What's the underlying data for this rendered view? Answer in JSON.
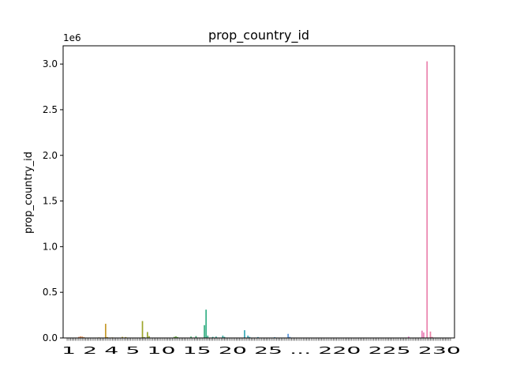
{
  "chart_data": {
    "type": "bar",
    "title": "prop_country_id",
    "xlabel": "",
    "ylabel": "prop_country_id",
    "y_multiplier_label": "1e6",
    "ylim": [
      0,
      3.2
    ],
    "yticks": [
      0.0,
      0.5,
      1.0,
      1.5,
      2.0,
      2.5,
      3.0
    ],
    "ytick_labels": [
      "0.0",
      "0.5",
      "1.0",
      "1.5",
      "2.0",
      "2.5",
      "3.0"
    ],
    "y_unit": "millions",
    "legend": "none",
    "grid": false,
    "xtick_labels_visible": "1  2  4  5  10  15  20  25  ...  220  225  230",
    "bars": [
      {
        "i": 1,
        "value": 0.004,
        "color": "#e8867a"
      },
      {
        "i": 8,
        "value": 0.012,
        "color": "#e08a60"
      },
      {
        "i": 9,
        "value": 0.018,
        "color": "#e08a55"
      },
      {
        "i": 10,
        "value": 0.015,
        "color": "#dd8b50"
      },
      {
        "i": 11,
        "value": 0.01,
        "color": "#db8d48"
      },
      {
        "i": 20,
        "value": 0.006,
        "color": "#c9932f"
      },
      {
        "i": 24,
        "value": 0.155,
        "color": "#c69a2a"
      },
      {
        "i": 25,
        "value": 0.01,
        "color": "#c49c28"
      },
      {
        "i": 28,
        "value": 0.006,
        "color": "#be9e26"
      },
      {
        "i": 34,
        "value": 0.012,
        "color": "#b6a226"
      },
      {
        "i": 36,
        "value": 0.01,
        "color": "#b3a326"
      },
      {
        "i": 46,
        "value": 0.185,
        "color": "#9ea52a"
      },
      {
        "i": 47,
        "value": 0.01,
        "color": "#9ca62b"
      },
      {
        "i": 49,
        "value": 0.065,
        "color": "#98a72c"
      },
      {
        "i": 50,
        "value": 0.02,
        "color": "#96a82d"
      },
      {
        "i": 65,
        "value": 0.012,
        "color": "#6aaa3a"
      },
      {
        "i": 66,
        "value": 0.018,
        "color": "#62aa3e"
      },
      {
        "i": 67,
        "value": 0.01,
        "color": "#5aaa43"
      },
      {
        "i": 75,
        "value": 0.015,
        "color": "#3fae65"
      },
      {
        "i": 78,
        "value": 0.02,
        "color": "#3aae72"
      },
      {
        "i": 83,
        "value": 0.14,
        "color": "#36af80"
      },
      {
        "i": 84,
        "value": 0.31,
        "color": "#34af86"
      },
      {
        "i": 85,
        "value": 0.025,
        "color": "#34af8a"
      },
      {
        "i": 88,
        "value": 0.012,
        "color": "#33ae92"
      },
      {
        "i": 90,
        "value": 0.015,
        "color": "#33ad98"
      },
      {
        "i": 94,
        "value": 0.025,
        "color": "#34ad9f"
      },
      {
        "i": 95,
        "value": 0.012,
        "color": "#34aca2"
      },
      {
        "i": 107,
        "value": 0.085,
        "color": "#36a8b6"
      },
      {
        "i": 109,
        "value": 0.025,
        "color": "#37a7b9"
      },
      {
        "i": 110,
        "value": 0.012,
        "color": "#38a6bb"
      },
      {
        "i": 115,
        "value": 0.01,
        "color": "#3aa3c3"
      },
      {
        "i": 125,
        "value": 0.008,
        "color": "#3d9ed1"
      },
      {
        "i": 133,
        "value": 0.045,
        "color": "#5a96dd"
      },
      {
        "i": 134,
        "value": 0.012,
        "color": "#6394df"
      },
      {
        "i": 205,
        "value": 0.015,
        "color": "#e67ec8"
      },
      {
        "i": 213,
        "value": 0.08,
        "color": "#e97fb8"
      },
      {
        "i": 214,
        "value": 0.06,
        "color": "#ea7fb4"
      },
      {
        "i": 216,
        "value": 3.03,
        "color": "#ea80ac"
      },
      {
        "i": 218,
        "value": 0.07,
        "color": "#eb81a6"
      },
      {
        "i": 219,
        "value": 0.012,
        "color": "#eb81a3"
      }
    ]
  }
}
